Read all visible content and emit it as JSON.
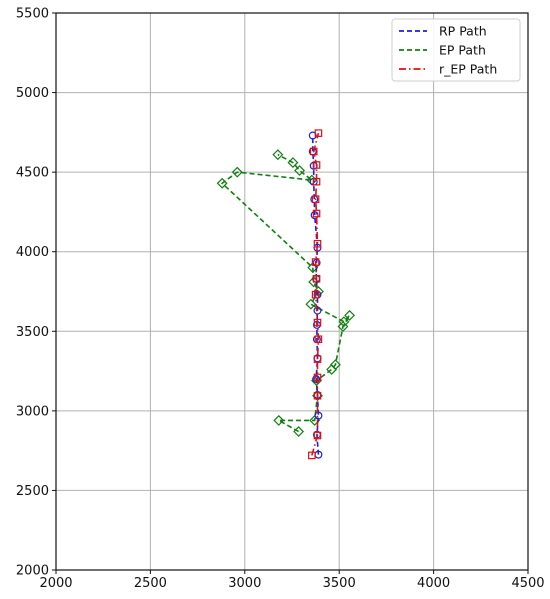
{
  "chart_data": {
    "type": "line",
    "xlim": [
      2000,
      4500
    ],
    "ylim": [
      2000,
      5500
    ],
    "xticks": [
      2000,
      2500,
      3000,
      3500,
      4000,
      4500
    ],
    "yticks": [
      2000,
      2500,
      3000,
      3500,
      4000,
      4500,
      5000,
      5500
    ],
    "grid": true,
    "legend_position": "top-right",
    "series": [
      {
        "name": "RP Path",
        "color": "#1f1fd6",
        "line": "dashed",
        "marker": "circle",
        "x": [
          3390,
          3382,
          3390,
          3385,
          3378,
          3385,
          3382,
          3382,
          3385,
          3385,
          3378,
          3380,
          3385,
          3370,
          3368,
          3365,
          3365,
          3360,
          3360
        ],
        "y": [
          2725,
          2850,
          2970,
          3100,
          3200,
          3330,
          3450,
          3540,
          3630,
          3730,
          3830,
          3930,
          4025,
          4230,
          4330,
          4440,
          4540,
          4630,
          4730
        ]
      },
      {
        "name": "EP Path",
        "color": "#0f7f0f",
        "line": "dashed",
        "marker": "diamond",
        "x": [
          3285,
          3180,
          3370,
          3385,
          3380,
          3460,
          3480,
          3520,
          3555,
          3525,
          3350,
          3390,
          3365,
          3360,
          2880,
          2960,
          3355,
          3290,
          3255,
          3175
        ],
        "y": [
          2870,
          2940,
          2940,
          3095,
          3190,
          3260,
          3290,
          3530,
          3600,
          3560,
          3670,
          3750,
          3810,
          3900,
          4430,
          4500,
          4450,
          4510,
          4560,
          4610
        ]
      },
      {
        "name": "r_EP Path",
        "color": "#e01010",
        "line": "dashdot",
        "marker": "square",
        "x": [
          3355,
          3385,
          3385,
          3385,
          3385,
          3390,
          3385,
          3375,
          3380,
          3375,
          3385,
          3380,
          3375,
          3380,
          3380,
          3365,
          3390
        ],
        "y": [
          2720,
          2845,
          3095,
          3210,
          3325,
          3450,
          3555,
          3730,
          3830,
          3935,
          4050,
          4240,
          4330,
          4440,
          4545,
          4630,
          4745
        ]
      }
    ]
  }
}
